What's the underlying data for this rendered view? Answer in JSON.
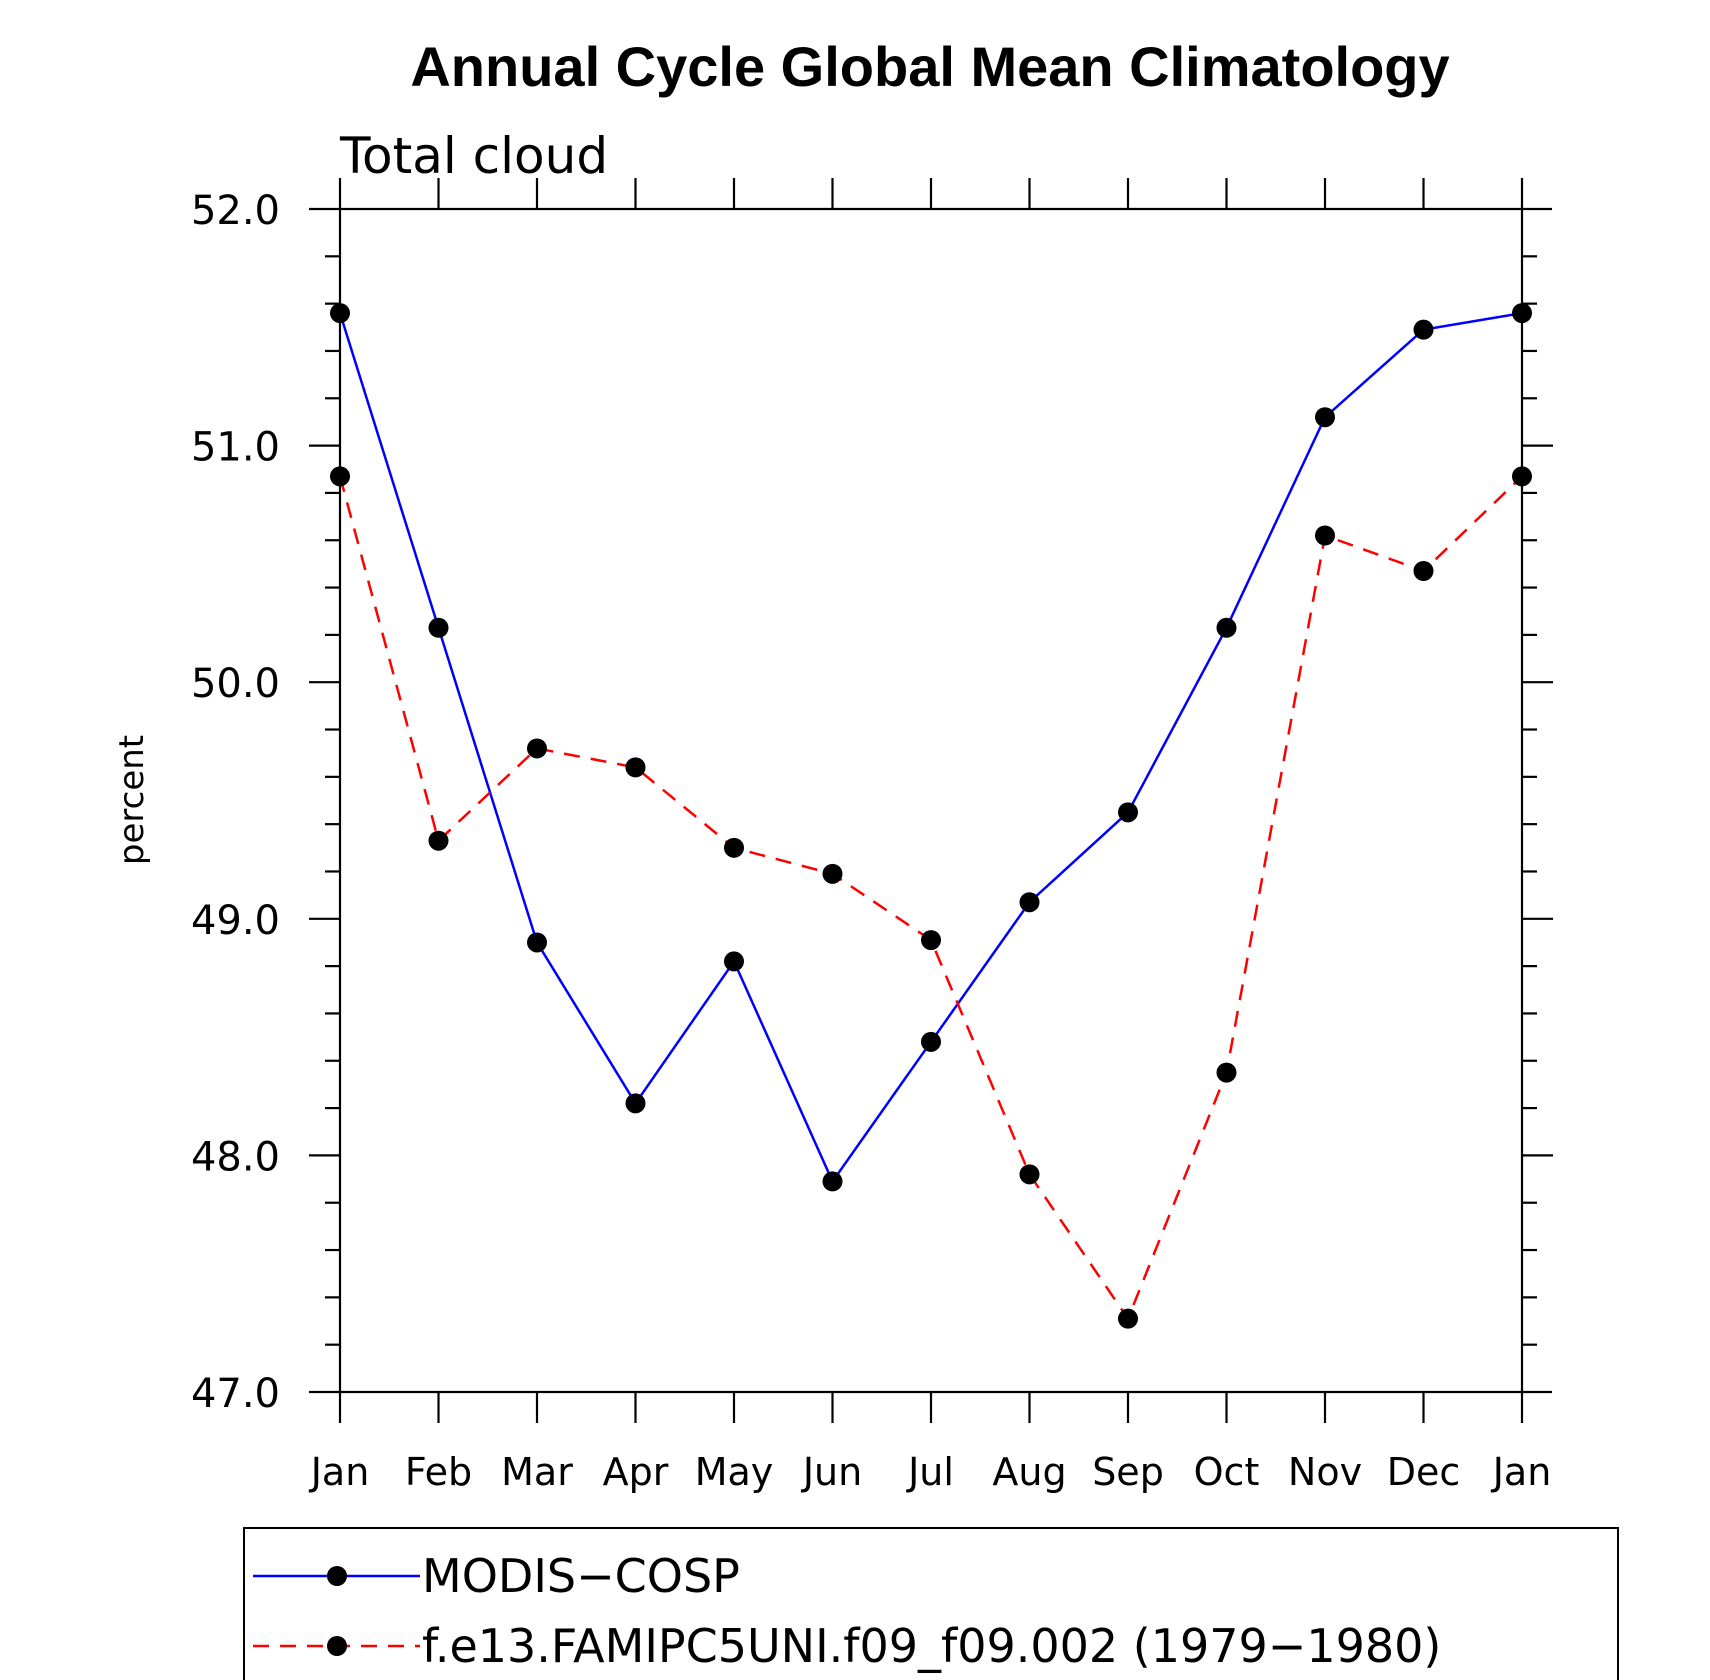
{
  "chart_data": {
    "type": "line",
    "title": "Annual Cycle Global Mean Climatology",
    "subtitle": "Total cloud",
    "xlabel": "",
    "ylabel": "percent",
    "ylim": [
      47.0,
      52.0
    ],
    "yticks": [
      "47.0",
      "48.0",
      "49.0",
      "50.0",
      "51.0",
      "52.0"
    ],
    "categories": [
      "Jan",
      "Feb",
      "Mar",
      "Apr",
      "May",
      "Jun",
      "Jul",
      "Aug",
      "Sep",
      "Oct",
      "Nov",
      "Dec",
      "Jan"
    ],
    "series": [
      {
        "name": "MODIS−COSP",
        "color": "#0000ff",
        "dash": "solid",
        "values": [
          51.56,
          50.23,
          48.9,
          48.22,
          48.82,
          47.89,
          48.48,
          49.07,
          49.45,
          50.23,
          51.12,
          51.49,
          51.56
        ]
      },
      {
        "name": "f.e13.FAMIPC5UNI.f09_f09.002 (1979−1980)",
        "color": "#ff0000",
        "dash": "dashed",
        "values": [
          50.87,
          49.33,
          49.72,
          49.64,
          49.3,
          49.19,
          48.91,
          47.92,
          47.31,
          48.35,
          50.62,
          50.47,
          50.87
        ]
      }
    ],
    "legend_position": "bottom"
  }
}
